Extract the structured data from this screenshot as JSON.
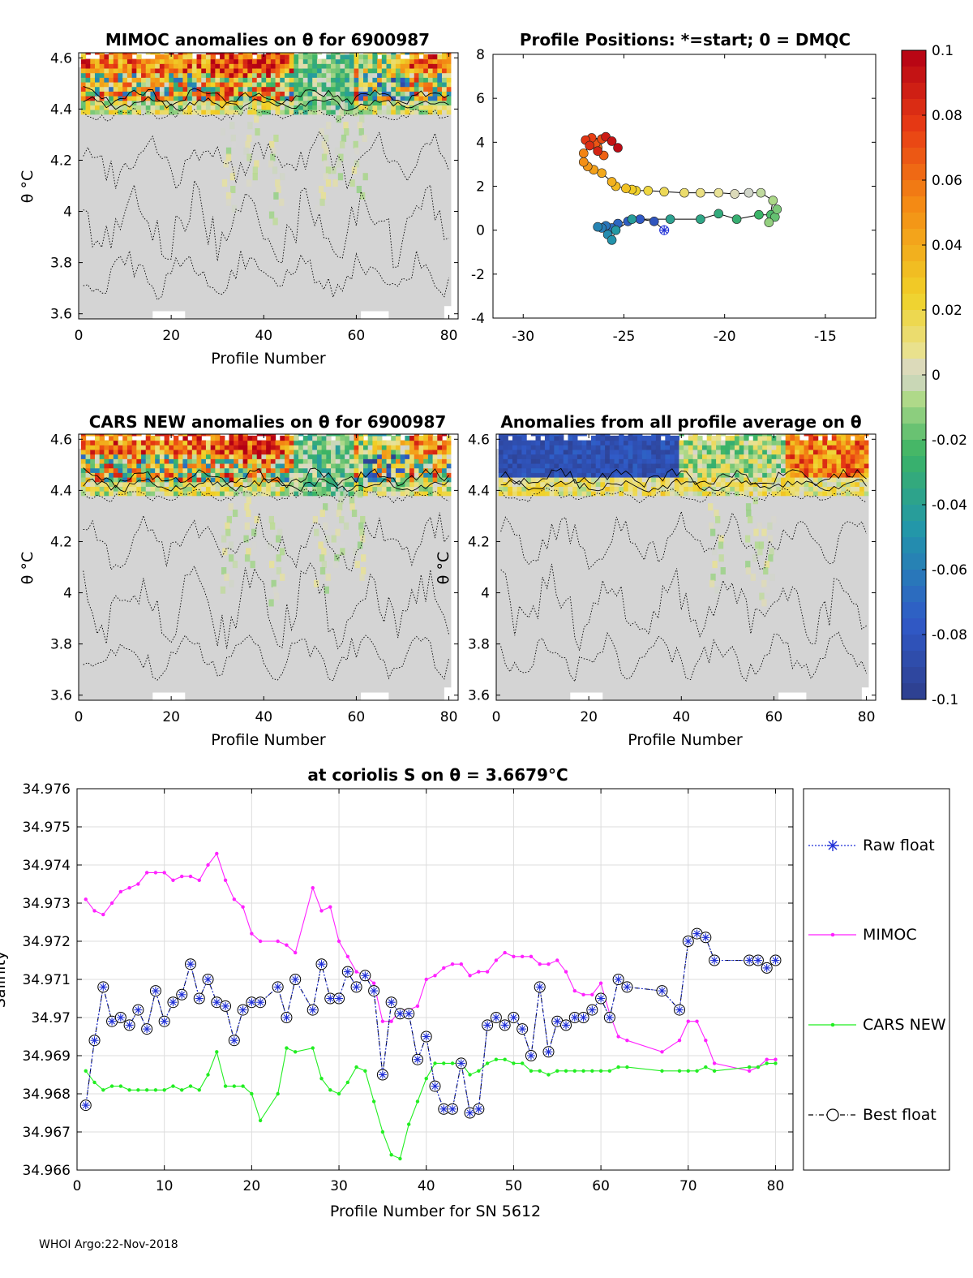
{
  "footer": "WHOI Argo:22-Nov-2018",
  "colors": {
    "raw_float": "#1f2fd6",
    "mimoc": "#ff22ff",
    "cars_new": "#22ee22",
    "best_float": "#000000",
    "grid": "#dddddd",
    "field_gray": "#d4d4d4"
  },
  "colorbar": {
    "ticks": [
      "0.1",
      "0.08",
      "0.06",
      "0.04",
      "0.02",
      "0",
      "-0.02",
      "-0.04",
      "-0.06",
      "-0.08",
      "-0.1"
    ],
    "range": [
      -0.1,
      0.1
    ]
  },
  "chart_data": [
    {
      "type": "heatmap",
      "title": "MIMOC anomalies on θ  for 6900987",
      "xlabel": "Profile Number",
      "ylabel": "θ °C",
      "xlim": [
        0,
        82
      ],
      "ylim": [
        3.58,
        4.62
      ],
      "xticks": [
        "0",
        "20",
        "40",
        "60",
        "80"
      ],
      "yticks": [
        "3.6",
        "3.8",
        "4",
        "4.2",
        "4.4",
        "4.6"
      ]
    },
    {
      "type": "line",
      "title": "Profile Positions: *=start; 0 = DMQC",
      "xlim": [
        -31.5,
        -12.5
      ],
      "ylim": [
        -4,
        8
      ],
      "xticks": [
        "-30",
        "-25",
        "-20",
        "-15"
      ],
      "yticks": [
        "-4",
        "-2",
        "0",
        "2",
        "4",
        "6",
        "8"
      ],
      "start": {
        "lon": -23,
        "lat": 0
      },
      "positions": [
        {
          "lon": -23.0,
          "lat": 0.0
        },
        {
          "lon": -23.5,
          "lat": 0.4
        },
        {
          "lon": -24.2,
          "lat": 0.5
        },
        {
          "lon": -24.8,
          "lat": 0.4
        },
        {
          "lon": -25.3,
          "lat": 0.3
        },
        {
          "lon": -25.6,
          "lat": 0.1
        },
        {
          "lon": -25.9,
          "lat": 0.2
        },
        {
          "lon": -26.1,
          "lat": 0.1
        },
        {
          "lon": -26.3,
          "lat": 0.15
        },
        {
          "lon": -25.8,
          "lat": -0.2
        },
        {
          "lon": -25.6,
          "lat": -0.45
        },
        {
          "lon": -25.4,
          "lat": 0.0
        },
        {
          "lon": -24.6,
          "lat": 0.5
        },
        {
          "lon": -22.7,
          "lat": 0.5
        },
        {
          "lon": -21.2,
          "lat": 0.5
        },
        {
          "lon": -20.3,
          "lat": 0.75
        },
        {
          "lon": -19.4,
          "lat": 0.5
        },
        {
          "lon": -18.3,
          "lat": 0.7
        },
        {
          "lon": -17.7,
          "lat": 0.7
        },
        {
          "lon": -17.5,
          "lat": 0.6
        },
        {
          "lon": -17.4,
          "lat": 0.95
        },
        {
          "lon": -17.8,
          "lat": 0.35
        },
        {
          "lon": -17.6,
          "lat": 1.35
        },
        {
          "lon": -18.2,
          "lat": 1.7
        },
        {
          "lon": -18.8,
          "lat": 1.7
        },
        {
          "lon": -19.5,
          "lat": 1.65
        },
        {
          "lon": -20.3,
          "lat": 1.7
        },
        {
          "lon": -21.2,
          "lat": 1.7
        },
        {
          "lon": -22.0,
          "lat": 1.7
        },
        {
          "lon": -23.0,
          "lat": 1.75
        },
        {
          "lon": -23.8,
          "lat": 1.8
        },
        {
          "lon": -24.4,
          "lat": 1.8
        },
        {
          "lon": -24.6,
          "lat": 1.85
        },
        {
          "lon": -24.9,
          "lat": 1.9
        },
        {
          "lon": -25.4,
          "lat": 2.0
        },
        {
          "lon": -25.6,
          "lat": 2.2
        },
        {
          "lon": -26.1,
          "lat": 2.6
        },
        {
          "lon": -26.5,
          "lat": 2.75
        },
        {
          "lon": -26.8,
          "lat": 2.9
        },
        {
          "lon": -27.0,
          "lat": 3.1
        },
        {
          "lon": -27.0,
          "lat": 3.5
        },
        {
          "lon": -26.7,
          "lat": 3.85
        },
        {
          "lon": -26.3,
          "lat": 3.75
        },
        {
          "lon": -26.0,
          "lat": 3.4
        },
        {
          "lon": -26.4,
          "lat": 3.95
        },
        {
          "lon": -26.1,
          "lat": 4.15
        },
        {
          "lon": -26.6,
          "lat": 4.2
        },
        {
          "lon": -26.9,
          "lat": 4.1
        },
        {
          "lon": -26.7,
          "lat": 3.85
        },
        {
          "lon": -26.3,
          "lat": 3.6
        },
        {
          "lon": -25.9,
          "lat": 4.25
        },
        {
          "lon": -25.6,
          "lat": 4.05
        },
        {
          "lon": -25.3,
          "lat": 3.75
        }
      ]
    },
    {
      "type": "heatmap",
      "title": "CARS NEW anomalies on θ for 6900987",
      "xlabel": "Profile Number",
      "ylabel": "θ °C",
      "xlim": [
        0,
        82
      ],
      "ylim": [
        3.58,
        4.62
      ],
      "xticks": [
        "0",
        "20",
        "40",
        "60",
        "80"
      ],
      "yticks": [
        "3.6",
        "3.8",
        "4",
        "4.2",
        "4.4",
        "4.6"
      ]
    },
    {
      "type": "heatmap",
      "title": "Anomalies from all profile average on θ",
      "xlabel": "Profile Number",
      "ylabel": "θ °C",
      "xlim": [
        0,
        82
      ],
      "ylim": [
        3.58,
        4.62
      ],
      "xticks": [
        "0",
        "20",
        "40",
        "60",
        "80"
      ],
      "yticks": [
        "3.6",
        "3.8",
        "4",
        "4.2",
        "4.4",
        "4.6"
      ]
    },
    {
      "type": "line",
      "title": "at coriolis S on θ = 3.6679°C",
      "xlabel": "Profile Number for SN 5612",
      "ylabel": "Salinity",
      "xlim": [
        0,
        82
      ],
      "ylim": [
        34.966,
        34.976
      ],
      "xticks": [
        "0",
        "10",
        "20",
        "30",
        "40",
        "50",
        "60",
        "70",
        "80"
      ],
      "yticks": [
        "34.976",
        "34.975",
        "34.974",
        "34.973",
        "34.972",
        "34.971",
        "34.97",
        "34.969",
        "34.968",
        "34.967",
        "34.966"
      ],
      "legend": [
        "Raw float",
        "MIMOC",
        "CARS NEW",
        "Best float"
      ],
      "series": [
        {
          "name": "Raw float",
          "x": [
            1,
            2,
            3,
            4,
            5,
            6,
            7,
            8,
            9,
            10,
            11,
            12,
            13,
            14,
            15,
            16,
            17,
            18,
            19,
            20,
            21,
            23,
            24,
            25,
            27,
            28,
            29,
            30,
            31,
            32,
            33,
            34,
            35,
            36,
            37,
            38,
            39,
            40,
            41,
            42,
            43,
            44,
            45,
            46,
            47,
            48,
            49,
            50,
            51,
            52,
            53,
            54,
            55,
            56,
            57,
            58,
            59,
            60,
            61,
            62,
            63,
            67,
            69,
            70,
            71,
            72,
            73,
            77,
            78,
            79,
            80
          ],
          "y": [
            34.9677,
            34.9694,
            34.9708,
            34.9699,
            34.97,
            34.9698,
            34.9702,
            34.9697,
            34.9707,
            34.9699,
            34.9704,
            34.9706,
            34.9714,
            34.9705,
            34.971,
            34.9704,
            34.9703,
            34.9694,
            34.9702,
            34.9704,
            34.9704,
            34.9708,
            34.97,
            34.971,
            34.9702,
            34.9714,
            34.9705,
            34.9705,
            34.9712,
            34.9708,
            34.9711,
            34.9707,
            34.9685,
            34.9704,
            34.9701,
            34.9701,
            34.9689,
            34.9695,
            34.9682,
            34.9676,
            34.9676,
            34.9688,
            34.9675,
            34.9676,
            34.9698,
            34.97,
            34.9698,
            34.97,
            34.9697,
            34.969,
            34.9708,
            34.9691,
            34.9699,
            34.9698,
            34.97,
            34.97,
            34.9702,
            34.9705,
            34.97,
            34.971,
            34.9708,
            34.9707,
            34.9702,
            34.972,
            34.9722,
            34.9721,
            34.9715,
            34.9715,
            34.9715,
            34.9713,
            34.9715
          ]
        },
        {
          "name": "MIMOC",
          "x": [
            1,
            2,
            3,
            4,
            5,
            6,
            7,
            8,
            9,
            10,
            11,
            12,
            13,
            14,
            15,
            16,
            17,
            18,
            19,
            20,
            21,
            23,
            24,
            25,
            27,
            28,
            29,
            30,
            31,
            32,
            33,
            34,
            35,
            36,
            37,
            38,
            39,
            40,
            41,
            42,
            43,
            44,
            45,
            46,
            47,
            48,
            49,
            50,
            51,
            52,
            53,
            54,
            55,
            56,
            57,
            58,
            59,
            60,
            61,
            62,
            63,
            67,
            69,
            70,
            71,
            72,
            73,
            77,
            78,
            79,
            80
          ],
          "y": [
            34.9731,
            34.9728,
            34.9727,
            34.973,
            34.9733,
            34.9734,
            34.9735,
            34.9738,
            34.9738,
            34.9738,
            34.9736,
            34.9737,
            34.9737,
            34.9736,
            34.974,
            34.9743,
            34.9736,
            34.9731,
            34.9729,
            34.9722,
            34.972,
            34.972,
            34.9719,
            34.9717,
            34.9734,
            34.9728,
            34.9729,
            34.972,
            34.9716,
            34.9712,
            34.9711,
            34.9709,
            34.9699,
            34.9699,
            34.9702,
            34.9702,
            34.9703,
            34.971,
            34.9711,
            34.9713,
            34.9714,
            34.9714,
            34.9711,
            34.9712,
            34.9712,
            34.9715,
            34.9717,
            34.9716,
            34.9716,
            34.9716,
            34.9714,
            34.9714,
            34.9715,
            34.9712,
            34.9707,
            34.9706,
            34.9706,
            34.9709,
            34.9701,
            34.9695,
            34.9694,
            34.9691,
            34.9694,
            34.9699,
            34.9699,
            34.9694,
            34.9688,
            34.9686,
            34.9687,
            34.9689,
            34.9689
          ]
        },
        {
          "name": "CARS NEW",
          "x": [
            1,
            2,
            3,
            4,
            5,
            6,
            7,
            8,
            9,
            10,
            11,
            12,
            13,
            14,
            15,
            16,
            17,
            18,
            19,
            20,
            21,
            23,
            24,
            25,
            27,
            28,
            29,
            30,
            31,
            32,
            33,
            34,
            35,
            36,
            37,
            38,
            39,
            40,
            41,
            42,
            43,
            44,
            45,
            46,
            47,
            48,
            49,
            50,
            51,
            52,
            53,
            54,
            55,
            56,
            57,
            58,
            59,
            60,
            61,
            62,
            63,
            67,
            69,
            70,
            71,
            72,
            73,
            77,
            78,
            79,
            80
          ],
          "y": [
            34.9686,
            34.9683,
            34.9681,
            34.9682,
            34.9682,
            34.9681,
            34.9681,
            34.9681,
            34.9681,
            34.9681,
            34.9682,
            34.9681,
            34.9682,
            34.9681,
            34.9685,
            34.9691,
            34.9682,
            34.9682,
            34.9682,
            34.968,
            34.9673,
            34.968,
            34.9692,
            34.9691,
            34.9692,
            34.9684,
            34.9681,
            34.968,
            34.9683,
            34.9687,
            34.9686,
            34.9678,
            34.967,
            34.9664,
            34.9663,
            34.9672,
            34.9678,
            34.9684,
            34.9688,
            34.9688,
            34.9688,
            34.9688,
            34.9685,
            34.9686,
            34.9688,
            34.9689,
            34.9689,
            34.9688,
            34.9688,
            34.9686,
            34.9686,
            34.9685,
            34.9686,
            34.9686,
            34.9686,
            34.9686,
            34.9686,
            34.9686,
            34.9686,
            34.9687,
            34.9687,
            34.9686,
            34.9686,
            34.9686,
            34.9686,
            34.9687,
            34.9686,
            34.9687,
            34.9687,
            34.9688,
            34.9688
          ]
        },
        {
          "name": "Best float",
          "x": [
            1,
            2,
            3,
            4,
            5,
            6,
            7,
            8,
            9,
            10,
            11,
            12,
            13,
            14,
            15,
            16,
            17,
            18,
            19,
            20,
            21,
            23,
            24,
            25,
            27,
            28,
            29,
            30,
            31,
            32,
            33,
            34,
            35,
            36,
            37,
            38,
            39,
            40,
            41,
            42,
            43,
            44,
            45,
            46,
            47,
            48,
            49,
            50,
            51,
            52,
            53,
            54,
            55,
            56,
            57,
            58,
            59,
            60,
            61,
            62,
            63,
            67,
            69,
            70,
            71,
            72,
            73,
            77,
            78,
            79,
            80
          ],
          "y": [
            34.9677,
            34.9694,
            34.9708,
            34.9699,
            34.97,
            34.9698,
            34.9702,
            34.9697,
            34.9707,
            34.9699,
            34.9704,
            34.9706,
            34.9714,
            34.9705,
            34.971,
            34.9704,
            34.9703,
            34.9694,
            34.9702,
            34.9704,
            34.9704,
            34.9708,
            34.97,
            34.971,
            34.9702,
            34.9714,
            34.9705,
            34.9705,
            34.9712,
            34.9708,
            34.9711,
            34.9707,
            34.9685,
            34.9704,
            34.9701,
            34.9701,
            34.9689,
            34.9695,
            34.9682,
            34.9676,
            34.9676,
            34.9688,
            34.9675,
            34.9676,
            34.9698,
            34.97,
            34.9698,
            34.97,
            34.9697,
            34.969,
            34.9708,
            34.9691,
            34.9699,
            34.9698,
            34.97,
            34.97,
            34.9702,
            34.9705,
            34.97,
            34.971,
            34.9708,
            34.9707,
            34.9702,
            34.972,
            34.9722,
            34.9721,
            34.9715,
            34.9715,
            34.9715,
            34.9713,
            34.9715
          ]
        }
      ]
    }
  ]
}
